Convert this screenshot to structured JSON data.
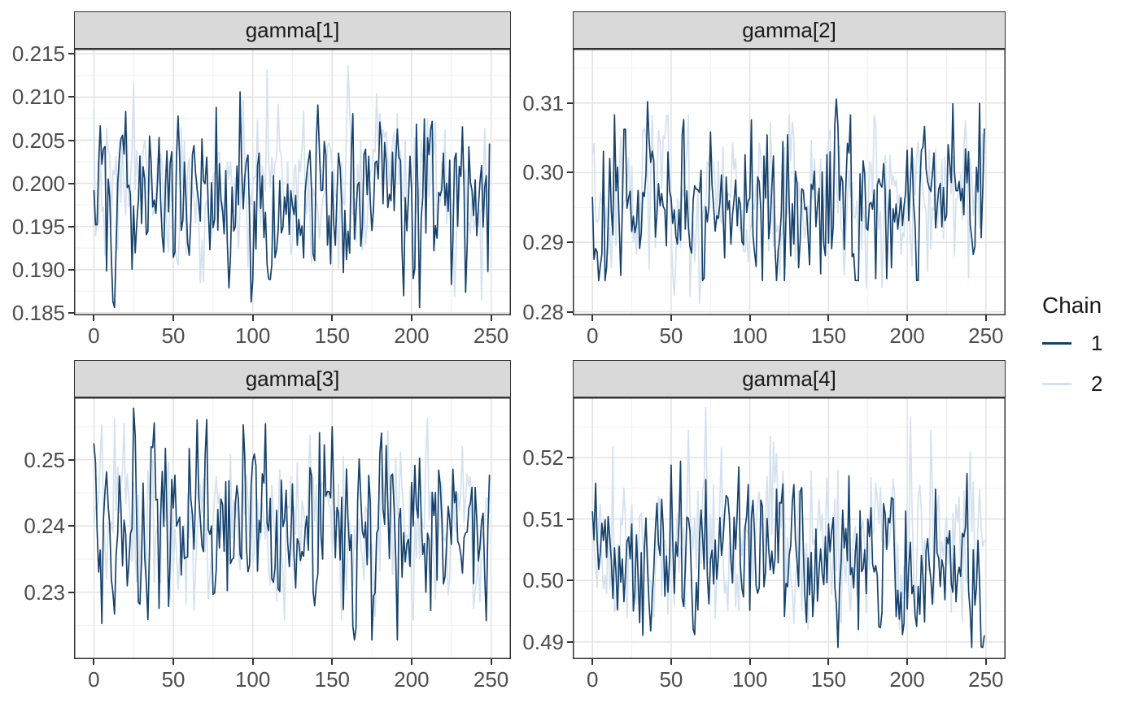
{
  "legend": {
    "title": "Chain",
    "items": [
      {
        "label": "1",
        "color": "#16426d"
      },
      {
        "label": "2",
        "color": "#d4e1ee"
      }
    ]
  },
  "style": {
    "background": "#ffffff",
    "strip_fill": "#d9d9d9",
    "strip_border": "#333333",
    "panel_border": "#333333",
    "panel_background": "#ffffff",
    "grid_major": "#e4e4e4",
    "grid_minor": "#f2f2f2",
    "axis_text_color": "#4d4d4d",
    "tick_color": "#333333"
  },
  "chart_data": {
    "type": "line",
    "kind": "mcmc-trace-plot",
    "facets": "2x2 grid, free y scales",
    "legend_position": "right",
    "grid": "major and minor gridlines on white panel with dark border",
    "n_iterations": 250,
    "x_range": [
      -12.5,
      262.5
    ],
    "x_ticks": [
      {
        "v": 0,
        "label": "0"
      },
      {
        "v": 50,
        "label": "50"
      },
      {
        "v": 100,
        "label": "100"
      },
      {
        "v": 150,
        "label": "150"
      },
      {
        "v": 200,
        "label": "200"
      },
      {
        "v": 250,
        "label": "250"
      }
    ],
    "panels": [
      {
        "title": "gamma[1]",
        "ylim": [
          0.1847,
          0.2156
        ],
        "yticks": [
          {
            "v": 0.185,
            "label": "0.185"
          },
          {
            "v": 0.19,
            "label": "0.190"
          },
          {
            "v": 0.195,
            "label": "0.195"
          },
          {
            "v": 0.2,
            "label": "0.200"
          },
          {
            "v": 0.205,
            "label": "0.205"
          },
          {
            "v": 0.21,
            "label": "0.210"
          },
          {
            "v": 0.215,
            "label": "0.215"
          }
        ],
        "chains": [
          {
            "name": "1",
            "mean": 0.1983,
            "sd": 0.005,
            "min": 0.1856,
            "max": 0.2106,
            "seed": 101
          },
          {
            "name": "2",
            "mean": 0.1996,
            "sd": 0.0047,
            "min": 0.1862,
            "max": 0.214,
            "seed": 202
          }
        ]
      },
      {
        "title": "gamma[2]",
        "ylim": [
          0.2795,
          0.3178
        ],
        "yticks": [
          {
            "v": 0.28,
            "label": "0.28"
          },
          {
            "v": 0.29,
            "label": "0.29"
          },
          {
            "v": 0.3,
            "label": "0.30"
          },
          {
            "v": 0.31,
            "label": "0.31"
          }
        ],
        "chains": [
          {
            "name": "1",
            "mean": 0.2958,
            "sd": 0.006,
            "min": 0.2845,
            "max": 0.3155,
            "seed": 303
          },
          {
            "name": "2",
            "mean": 0.2962,
            "sd": 0.0058,
            "min": 0.2812,
            "max": 0.3082,
            "seed": 404
          }
        ]
      },
      {
        "title": "gamma[3]",
        "ylim": [
          0.2199,
          0.2594
        ],
        "yticks": [
          {
            "v": 0.23,
            "label": "0.23"
          },
          {
            "v": 0.24,
            "label": "0.24"
          },
          {
            "v": 0.25,
            "label": "0.25"
          }
        ],
        "chains": [
          {
            "name": "1",
            "mean": 0.2396,
            "sd": 0.0076,
            "min": 0.2228,
            "max": 0.2588,
            "seed": 505
          },
          {
            "name": "2",
            "mean": 0.2404,
            "sd": 0.0068,
            "min": 0.2258,
            "max": 0.2562,
            "seed": 606
          }
        ]
      },
      {
        "title": "gamma[4]",
        "ylim": [
          0.4872,
          0.5298
        ],
        "yticks": [
          {
            "v": 0.49,
            "label": "0.49"
          },
          {
            "v": 0.5,
            "label": "0.50"
          },
          {
            "v": 0.51,
            "label": "0.51"
          },
          {
            "v": 0.52,
            "label": "0.52"
          }
        ],
        "chains": [
          {
            "name": "1",
            "mean": 0.5048,
            "sd": 0.0064,
            "min": 0.4891,
            "max": 0.5196,
            "seed": 707
          },
          {
            "name": "2",
            "mean": 0.5066,
            "sd": 0.0068,
            "min": 0.4921,
            "max": 0.5286,
            "seed": 808
          }
        ]
      }
    ]
  }
}
